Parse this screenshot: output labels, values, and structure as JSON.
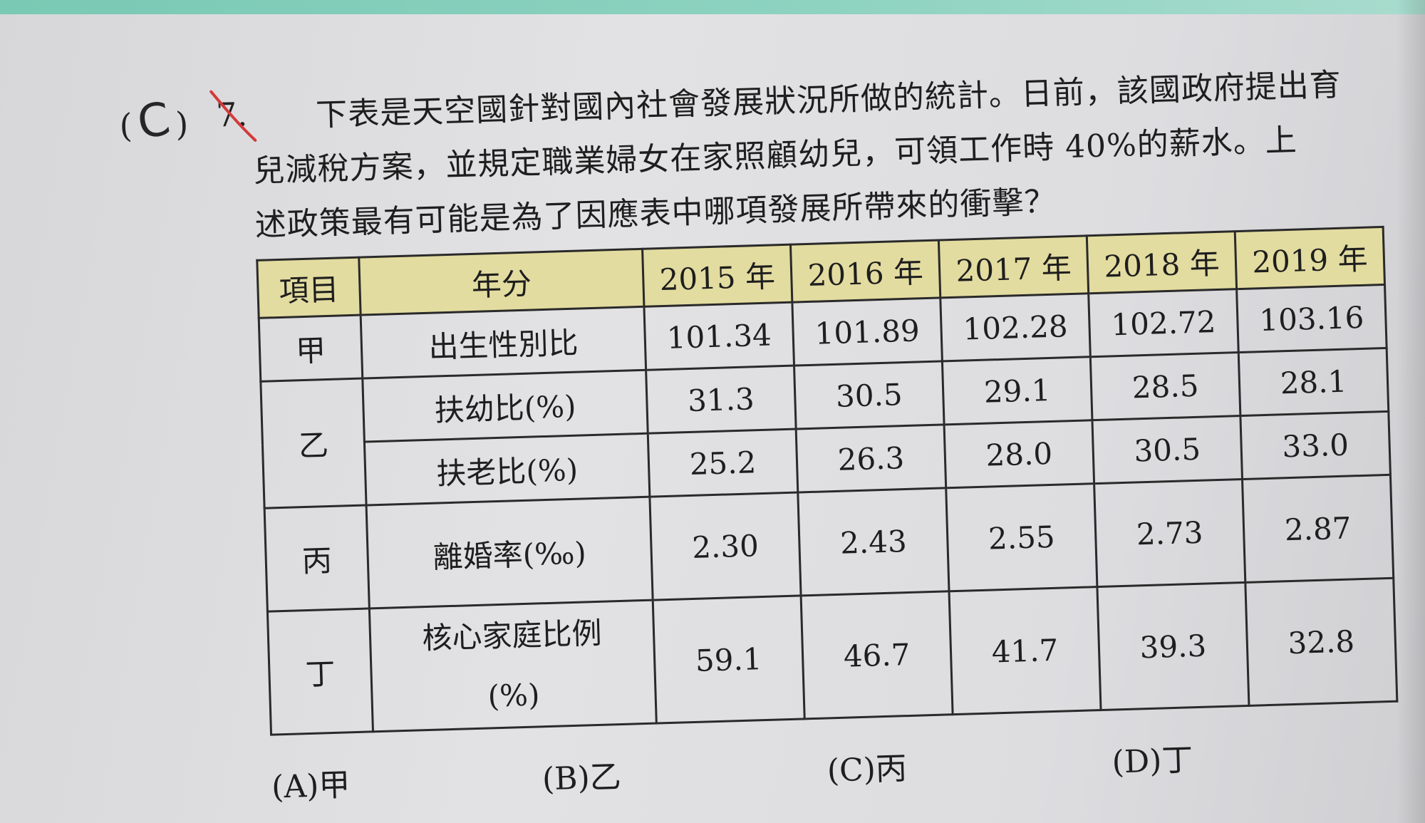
{
  "question": {
    "answer_paren_open": "(",
    "answer": "C",
    "answer_paren_close": ")",
    "number": "7.",
    "line1": "下表是天空國針對國內社會發展狀況所做的統計。日前，該國政府提出育",
    "line2": "兒減稅方案，並規定職業婦女在家照顧幼兒，可領工作時 40%的薪水。上",
    "line3": "述政策最有可能是為了因應表中哪項發展所帶來的衝擊？"
  },
  "table": {
    "headers": {
      "item": "項目",
      "name": "年分",
      "years": [
        "2015 年",
        "2016 年",
        "2017 年",
        "2018 年",
        "2019 年"
      ]
    },
    "rows": [
      {
        "item": "甲",
        "name": "出生性別比",
        "values": [
          "101.34",
          "101.89",
          "102.28",
          "102.72",
          "103.16"
        ]
      },
      {
        "item": "乙",
        "name": "扶幼比(%)",
        "values": [
          "31.3",
          "30.5",
          "29.1",
          "28.5",
          "28.1"
        ]
      },
      {
        "item": "",
        "name": "扶老比(%)",
        "values": [
          "25.2",
          "26.3",
          "28.0",
          "30.5",
          "33.0"
        ]
      },
      {
        "item": "丙",
        "name": "離婚率(‰)",
        "values": [
          "2.30",
          "2.43",
          "2.55",
          "2.73",
          "2.87"
        ]
      },
      {
        "item": "丁",
        "name_line1": "核心家庭比例",
        "name_line2": "(%)",
        "values": [
          "59.1",
          "46.7",
          "41.7",
          "39.3",
          "32.8"
        ]
      }
    ]
  },
  "options": [
    "(A)甲",
    "(B)乙",
    "(C)丙",
    "(D)丁"
  ],
  "colors": {
    "header_bg": "#e3dca0",
    "red_mark": "#d33a3a",
    "top_strip": "#8fd3c1"
  }
}
